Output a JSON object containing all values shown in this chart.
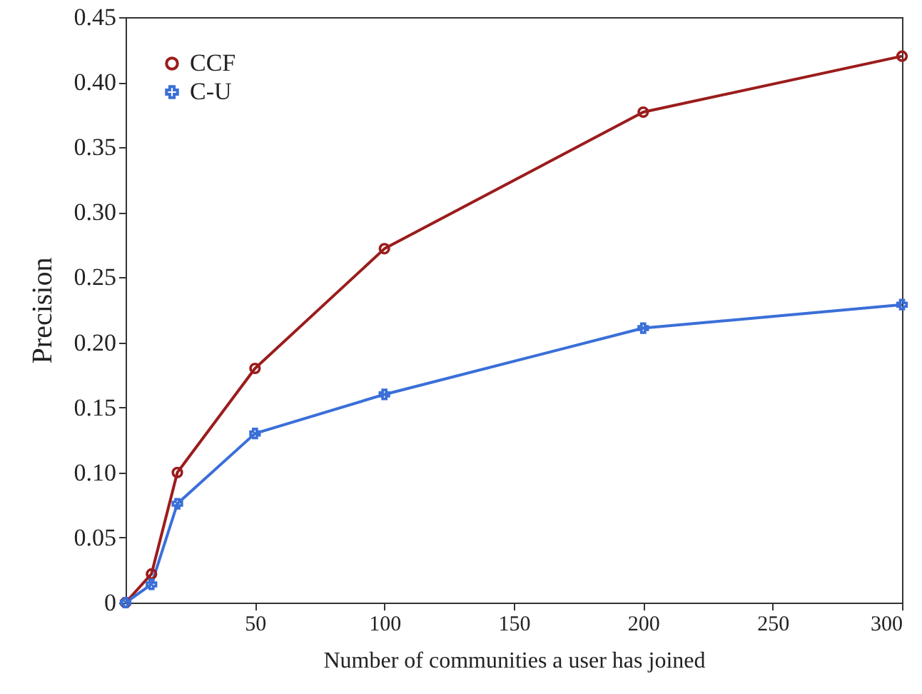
{
  "chart_data": {
    "type": "line",
    "xlabel": "Number of communities a user has joined",
    "ylabel": "Precision",
    "x": [
      0,
      10,
      20,
      50,
      100,
      200,
      300
    ],
    "series": [
      {
        "name": "CCF",
        "color": "#9b1c1c",
        "marker": "circle",
        "values": [
          0,
          0.022,
          0.1,
          0.18,
          0.272,
          0.377,
          0.42
        ]
      },
      {
        "name": "C-U",
        "color": "#3a6fd8",
        "marker": "cross",
        "values": [
          0,
          0.014,
          0.076,
          0.13,
          0.16,
          0.211,
          0.229
        ]
      }
    ],
    "xlim": [
      0,
      300
    ],
    "xticks": [
      50,
      100,
      150,
      200,
      250,
      300
    ],
    "ylim": [
      0,
      0.45
    ],
    "yticks": [
      0,
      0.05,
      {
        "value": 0.1,
        "label": "0.10"
      },
      0.15,
      {
        "value": 0.2,
        "label": "0.20"
      },
      0.25,
      {
        "value": 0.3,
        "label": "0.30"
      },
      0.35,
      {
        "value": 0.4,
        "label": "0.40"
      },
      0.45
    ],
    "grid": false,
    "legend": "top left",
    "line_style": "solid"
  }
}
